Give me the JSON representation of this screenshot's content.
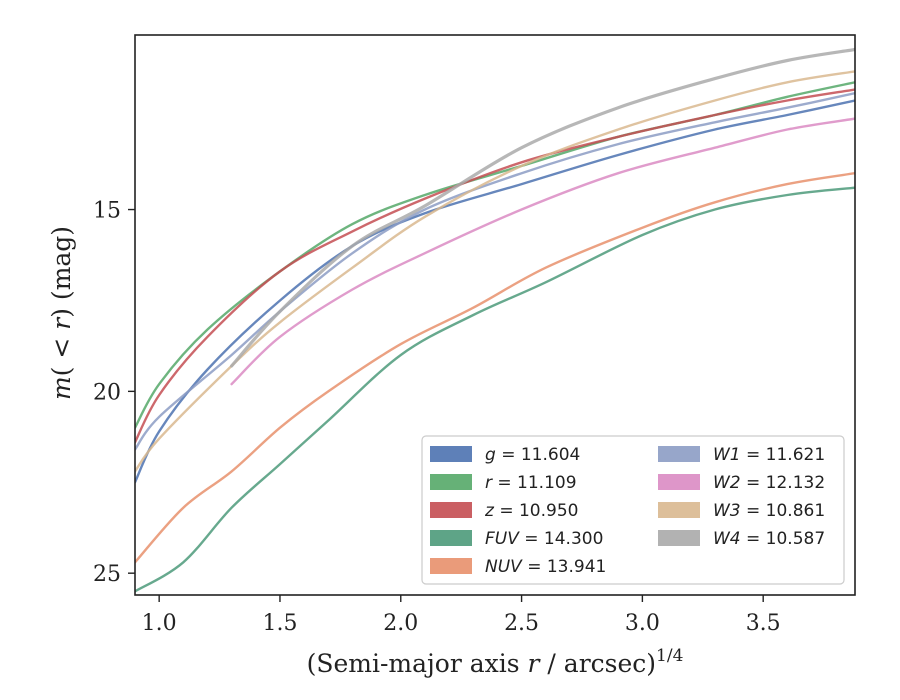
{
  "chart_data": {
    "type": "line",
    "x_label_prefix": "(Semi-major axis ",
    "x_label_var": "r",
    "x_label_mid": " / arcsec)",
    "x_label_sup": "1/4",
    "y_label_pre": "m(",
    "y_label_mid": " < ",
    "y_label_var": "r",
    "y_label_post": ") (mag)",
    "xlim": [
      0.9,
      3.88
    ],
    "ylim": [
      25.6,
      10.2
    ],
    "y_inverted": true,
    "x_ticks": [
      {
        "value": 1.0,
        "label": "1.0"
      },
      {
        "value": 1.5,
        "label": "1.5"
      },
      {
        "value": 2.0,
        "label": "2.0"
      },
      {
        "value": 2.5,
        "label": "2.5"
      },
      {
        "value": 3.0,
        "label": "3.0"
      },
      {
        "value": 3.5,
        "label": "3.5"
      }
    ],
    "y_ticks": [
      {
        "value": 15,
        "label": "15"
      },
      {
        "value": 20,
        "label": "20"
      },
      {
        "value": 25,
        "label": "25"
      }
    ],
    "grid": false,
    "legend_position": "lower-right",
    "legend_columns": 2,
    "series": [
      {
        "name": "g",
        "value": "11.604",
        "color": "#4c72b0",
        "x": [
          0.9,
          1.0,
          1.2,
          1.5,
          1.8,
          2.1,
          2.5,
          2.9,
          3.3,
          3.6,
          3.88
        ],
        "y": [
          22.5,
          21.1,
          19.4,
          17.5,
          16.0,
          15.1,
          14.3,
          13.5,
          12.8,
          12.4,
          12.0
        ]
      },
      {
        "name": "r",
        "value": "11.109",
        "color": "#55a868",
        "x": [
          0.9,
          1.0,
          1.2,
          1.5,
          1.8,
          2.1,
          2.5,
          2.9,
          3.3,
          3.6,
          3.88
        ],
        "y": [
          21.0,
          19.8,
          18.3,
          16.7,
          15.4,
          14.6,
          13.8,
          13.0,
          12.4,
          11.9,
          11.5
        ]
      },
      {
        "name": "z",
        "value": "10.950",
        "color": "#c44e52",
        "x": [
          0.9,
          1.0,
          1.2,
          1.5,
          1.8,
          2.1,
          2.5,
          2.9,
          3.3,
          3.6,
          3.88
        ],
        "y": [
          21.4,
          20.1,
          18.5,
          16.7,
          15.6,
          14.7,
          13.7,
          13.0,
          12.4,
          12.0,
          11.7
        ]
      },
      {
        "name": "FUV",
        "value": "14.300",
        "color": "#4c9a7a",
        "x": [
          0.9,
          1.1,
          1.3,
          1.5,
          1.7,
          2.0,
          2.3,
          2.6,
          3.0,
          3.3,
          3.6,
          3.88
        ],
        "y": [
          25.5,
          24.7,
          23.2,
          22.0,
          20.8,
          19.0,
          17.9,
          17.0,
          15.7,
          15.0,
          14.6,
          14.4
        ]
      },
      {
        "name": "NUV",
        "value": "13.941",
        "color": "#e8906c",
        "x": [
          0.9,
          1.1,
          1.3,
          1.5,
          1.7,
          2.0,
          2.3,
          2.6,
          3.0,
          3.3,
          3.6,
          3.88
        ],
        "y": [
          24.7,
          23.2,
          22.2,
          21.0,
          20.0,
          18.7,
          17.7,
          16.6,
          15.5,
          14.8,
          14.3,
          14.0
        ]
      },
      {
        "name": "W1",
        "value": "11.621",
        "color": "#8c9cc4",
        "x": [
          0.9,
          1.0,
          1.3,
          1.5,
          1.8,
          2.1,
          2.5,
          2.9,
          3.3,
          3.6,
          3.88
        ],
        "y": [
          21.6,
          20.7,
          19.0,
          17.8,
          16.2,
          15.0,
          14.0,
          13.2,
          12.6,
          12.2,
          11.8
        ]
      },
      {
        "name": "W2",
        "value": "12.132",
        "color": "#da8bc3",
        "x": [
          1.3,
          1.5,
          1.8,
          2.1,
          2.5,
          2.9,
          3.3,
          3.6,
          3.88
        ],
        "y": [
          19.8,
          18.5,
          17.2,
          16.2,
          15.0,
          14.0,
          13.3,
          12.8,
          12.5
        ]
      },
      {
        "name": "W3",
        "value": "10.861",
        "color": "#d9b88f",
        "x": [
          0.9,
          1.0,
          1.3,
          1.5,
          1.8,
          2.1,
          2.5,
          2.9,
          3.3,
          3.6,
          3.88
        ],
        "y": [
          22.2,
          21.3,
          19.3,
          18.1,
          16.6,
          15.2,
          13.8,
          12.8,
          12.0,
          11.5,
          11.2
        ]
      },
      {
        "name": "W4",
        "value": "10.587",
        "color": "#aaaaaa",
        "x": [
          1.3,
          1.5,
          1.8,
          2.1,
          2.5,
          2.9,
          3.3,
          3.6,
          3.88
        ],
        "y": [
          19.3,
          17.8,
          16.0,
          14.9,
          13.3,
          12.2,
          11.4,
          10.9,
          10.6
        ]
      }
    ]
  }
}
